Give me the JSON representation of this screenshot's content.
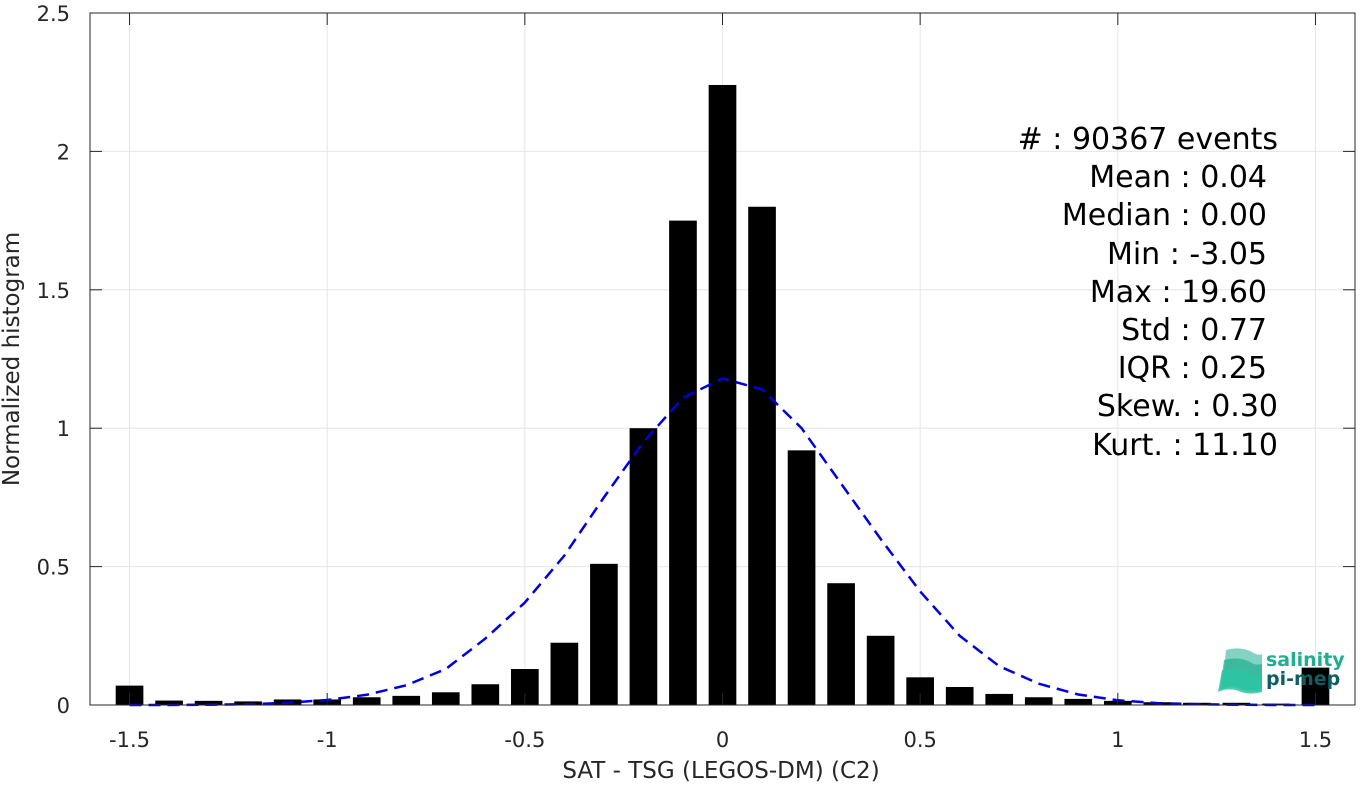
{
  "chart_data": {
    "type": "bar",
    "xlabel": "SAT - TSG (LEGOS-DM) (C2)",
    "ylabel": "Normalized histogram",
    "xlim": [
      -1.6,
      1.6
    ],
    "ylim": [
      0,
      2.5
    ],
    "grid": true,
    "x_ticks": [
      "-1.5",
      "-1",
      "-0.5",
      "0",
      "0.5",
      "1",
      "1.5"
    ],
    "y_ticks": [
      "0",
      "0.5",
      "1",
      "1.5",
      "2",
      "2.5"
    ],
    "bars": {
      "x": [
        -1.5,
        -1.4,
        -1.3,
        -1.2,
        -1.1,
        -1.0,
        -0.9,
        -0.8,
        -0.7,
        -0.6,
        -0.5,
        -0.4,
        -0.3,
        -0.2,
        -0.1,
        0.0,
        0.1,
        0.2,
        0.3,
        0.4,
        0.5,
        0.6,
        0.7,
        0.8,
        0.9,
        1.0,
        1.1,
        1.2,
        1.3,
        1.4,
        1.5
      ],
      "values": [
        0.07,
        0.016,
        0.015,
        0.013,
        0.02,
        0.02,
        0.028,
        0.033,
        0.046,
        0.075,
        0.13,
        0.225,
        0.51,
        1.0,
        1.75,
        2.24,
        1.8,
        0.92,
        0.44,
        0.25,
        0.1,
        0.065,
        0.04,
        0.028,
        0.022,
        0.015,
        0.01,
        0.008,
        0.008,
        0.005,
        0.135
      ],
      "color": "#000000"
    },
    "fit_curve": {
      "style": "dashed",
      "color": "#0000dd",
      "x": [
        -1.5,
        -1.4,
        -1.3,
        -1.2,
        -1.1,
        -1.0,
        -0.9,
        -0.8,
        -0.7,
        -0.6,
        -0.5,
        -0.4,
        -0.3,
        -0.2,
        -0.1,
        0.0,
        0.1,
        0.2,
        0.3,
        0.4,
        0.5,
        0.6,
        0.7,
        0.8,
        0.9,
        1.0,
        1.1,
        1.2,
        1.3,
        1.4,
        1.5
      ],
      "y": [
        0.0,
        0.0,
        0.001,
        0.003,
        0.008,
        0.018,
        0.037,
        0.071,
        0.13,
        0.24,
        0.37,
        0.54,
        0.75,
        0.95,
        1.11,
        1.18,
        1.14,
        1.0,
        0.8,
        0.6,
        0.41,
        0.25,
        0.14,
        0.077,
        0.038,
        0.017,
        0.007,
        0.003,
        0.001,
        0.0,
        0.0
      ]
    },
    "stats": [
      "#  : 90367 events",
      "Mean : 0.04",
      "Median : 0.00",
      "Min : -3.05",
      "Max : 19.60",
      "Std : 0.77",
      "IQR : 0.25",
      "Skew. : 0.30",
      "Kurt. : 11.10"
    ]
  },
  "logo": {
    "line1": "salinity",
    "line2": "pi-mep",
    "color1": "#1fae8f",
    "color2": "#0f5e63"
  }
}
